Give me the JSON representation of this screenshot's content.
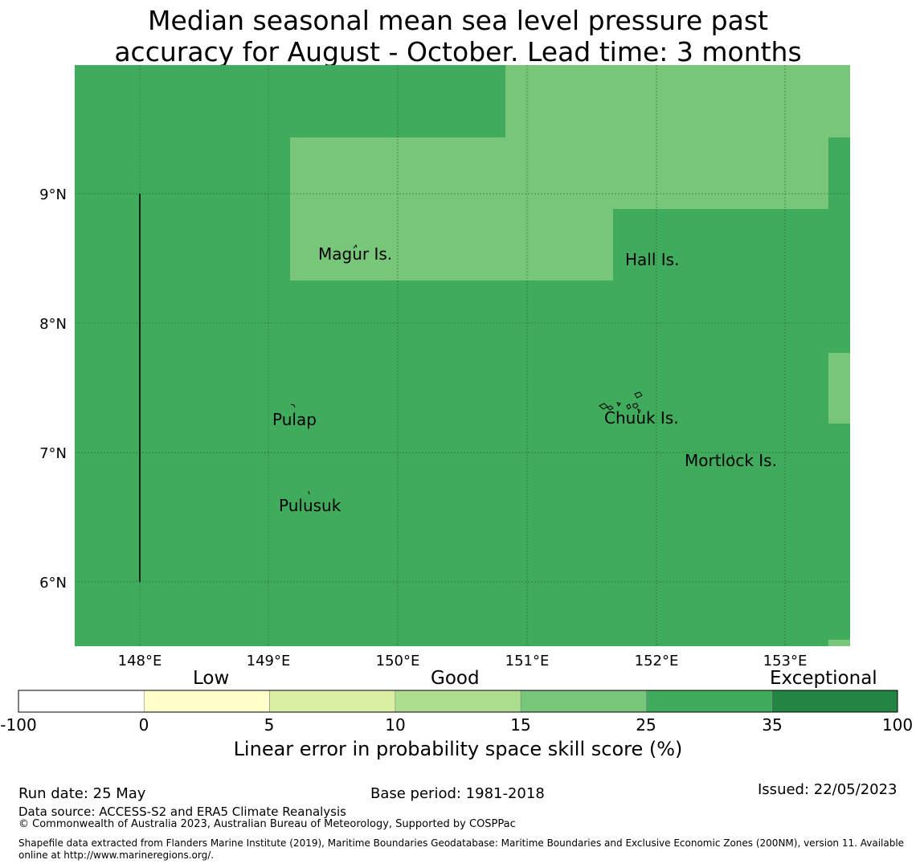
{
  "title": {
    "line1": "Median seasonal mean sea level pressure past",
    "line2": "accuracy for August - October. Lead time: 3 months"
  },
  "map": {
    "lat_ticks": [
      "9°N",
      "8°N",
      "7°N",
      "6°N"
    ],
    "lon_ticks": [
      "148°E",
      "149°E",
      "150°E",
      "151°E",
      "152°E",
      "153°E"
    ],
    "places": [
      "Magur Is.",
      "Hall Is.",
      "Pulap",
      "Chuuk Is.",
      "Mortlock Is.",
      "Pulusuk"
    ],
    "colors": {
      "skill_25_35": "#41ab5d",
      "skill_15_25": "#78c679",
      "grid": "#1a4d28",
      "coast": "#000000"
    }
  },
  "colorbar": {
    "categories": [
      "Low",
      "Good",
      "Exceptional"
    ],
    "bounds": [
      "-100",
      "0",
      "5",
      "10",
      "15",
      "25",
      "35",
      "100"
    ],
    "colors": [
      "#ffffff",
      "#ffffcc",
      "#d9f0a3",
      "#addd8e",
      "#78c679",
      "#41ab5d",
      "#238443"
    ],
    "label": "Linear error in probability space skill score (%)"
  },
  "footer": {
    "run_date": "Run date: 25 May",
    "base_period": "Base period: 1981-2018",
    "issued": "Issued: 22/05/2023",
    "data_source": "Data source: ACCESS-S2 and ERA5 Climate Reanalysis",
    "copyright": "© Commonwealth of Australia 2023, Australian Bureau of Meteorology, Supported by COSPPac",
    "shapefile_line1": "Shapefile data extracted from Flanders Marine Institute (2019), Maritime Boundaries Geodatabase: Maritime Boundaries and Exclusive Economic Zones (200NM), version 11. Available",
    "shapefile_line2": "online at http://www.marineregions.org/."
  }
}
